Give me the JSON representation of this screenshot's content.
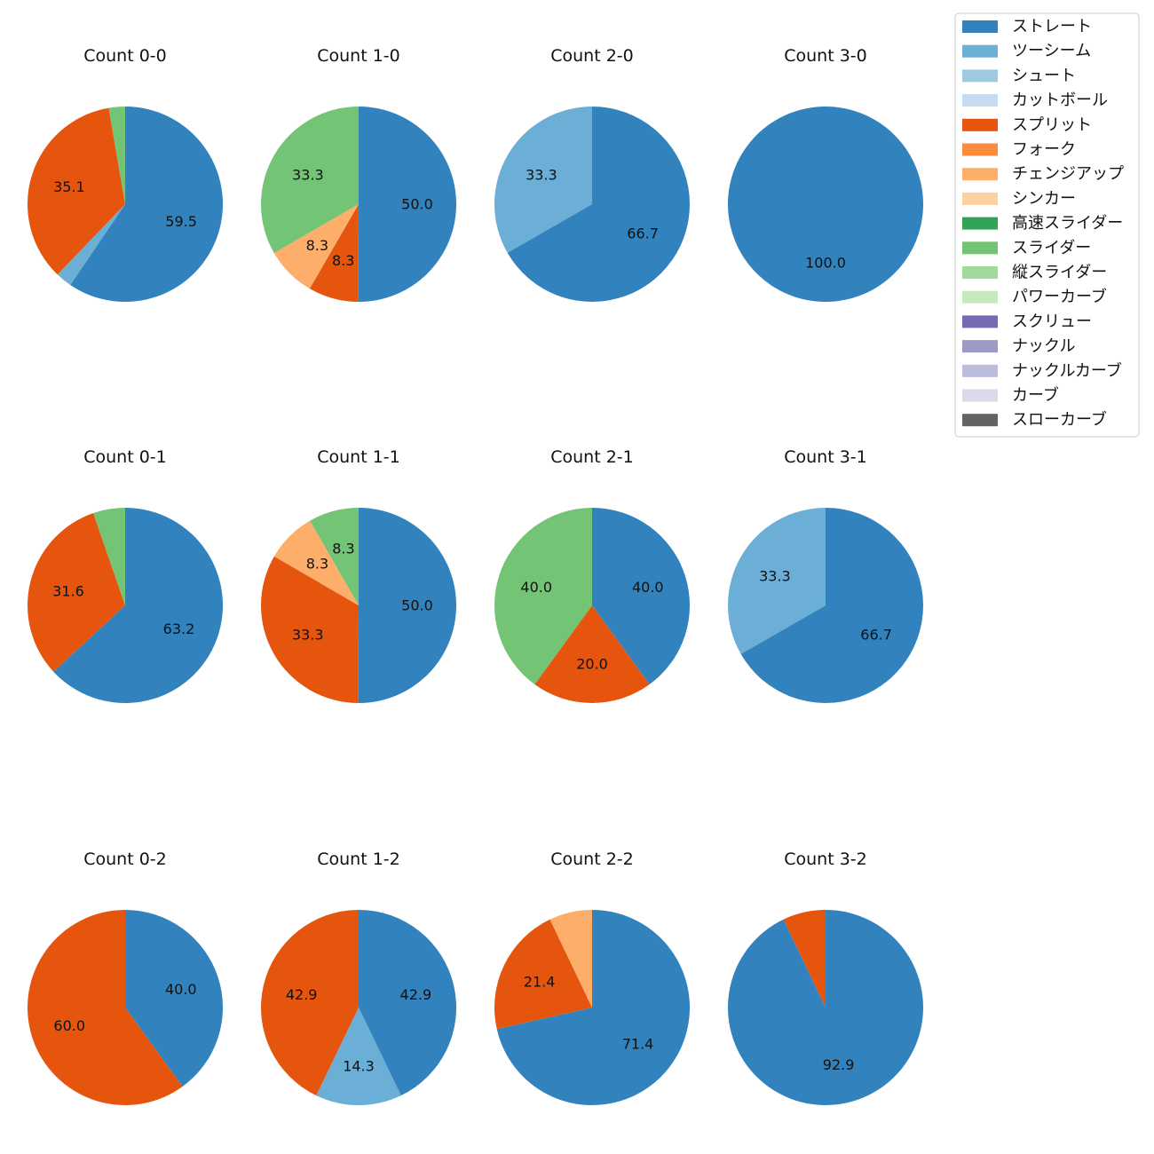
{
  "legend": [
    {
      "name": "ストレート",
      "color": "#3182bd"
    },
    {
      "name": "ツーシーム",
      "color": "#6baed6"
    },
    {
      "name": "シュート",
      "color": "#9ecae1"
    },
    {
      "name": "カットボール",
      "color": "#c6dbef"
    },
    {
      "name": "スプリット",
      "color": "#e6550d"
    },
    {
      "name": "フォーク",
      "color": "#fd8d3c"
    },
    {
      "name": "チェンジアップ",
      "color": "#fdae6b"
    },
    {
      "name": "シンカー",
      "color": "#fdd0a2"
    },
    {
      "name": "高速スライダー",
      "color": "#31a354"
    },
    {
      "name": "スライダー",
      "color": "#74c476"
    },
    {
      "name": "縦スライダー",
      "color": "#a1d99b"
    },
    {
      "name": "パワーカーブ",
      "color": "#c7e9c0"
    },
    {
      "name": "スクリュー",
      "color": "#756bb1"
    },
    {
      "name": "ナックル",
      "color": "#9e9ac8"
    },
    {
      "name": "ナックルカーブ",
      "color": "#bcbddc"
    },
    {
      "name": "カーブ",
      "color": "#dadaeb"
    },
    {
      "name": "スローカーブ",
      "color": "#636363"
    }
  ],
  "chart_data": [
    {
      "type": "pie",
      "title": "Count 0-0",
      "slices": [
        {
          "pitch": "ストレート",
          "value": 59.5,
          "label": "59.5"
        },
        {
          "pitch": "ツーシーム",
          "value": 2.7,
          "label": ""
        },
        {
          "pitch": "スプリット",
          "value": 35.1,
          "label": "35.1"
        },
        {
          "pitch": "スライダー",
          "value": 2.7,
          "label": ""
        }
      ]
    },
    {
      "type": "pie",
      "title": "Count 1-0",
      "slices": [
        {
          "pitch": "ストレート",
          "value": 50.0,
          "label": "50.0"
        },
        {
          "pitch": "スプリット",
          "value": 8.3,
          "label": "8.3"
        },
        {
          "pitch": "チェンジアップ",
          "value": 8.3,
          "label": "8.3"
        },
        {
          "pitch": "スライダー",
          "value": 33.3,
          "label": "33.3"
        }
      ]
    },
    {
      "type": "pie",
      "title": "Count 2-0",
      "slices": [
        {
          "pitch": "ストレート",
          "value": 66.7,
          "label": "66.7"
        },
        {
          "pitch": "ツーシーム",
          "value": 33.3,
          "label": "33.3"
        }
      ]
    },
    {
      "type": "pie",
      "title": "Count 3-0",
      "slices": [
        {
          "pitch": "ストレート",
          "value": 100.0,
          "label": "100.0"
        }
      ]
    },
    {
      "type": "pie",
      "title": "Count 0-1",
      "slices": [
        {
          "pitch": "ストレート",
          "value": 63.2,
          "label": "63.2"
        },
        {
          "pitch": "スプリット",
          "value": 31.6,
          "label": "31.6"
        },
        {
          "pitch": "スライダー",
          "value": 5.3,
          "label": ""
        }
      ]
    },
    {
      "type": "pie",
      "title": "Count 1-1",
      "slices": [
        {
          "pitch": "ストレート",
          "value": 50.0,
          "label": "50.0"
        },
        {
          "pitch": "スプリット",
          "value": 33.3,
          "label": "33.3"
        },
        {
          "pitch": "チェンジアップ",
          "value": 8.3,
          "label": "8.3"
        },
        {
          "pitch": "スライダー",
          "value": 8.3,
          "label": "8.3"
        }
      ]
    },
    {
      "type": "pie",
      "title": "Count 2-1",
      "slices": [
        {
          "pitch": "ストレート",
          "value": 40.0,
          "label": "40.0"
        },
        {
          "pitch": "スプリット",
          "value": 20.0,
          "label": "20.0"
        },
        {
          "pitch": "スライダー",
          "value": 40.0,
          "label": "40.0"
        }
      ]
    },
    {
      "type": "pie",
      "title": "Count 3-1",
      "slices": [
        {
          "pitch": "ストレート",
          "value": 66.7,
          "label": "66.7"
        },
        {
          "pitch": "ツーシーム",
          "value": 33.3,
          "label": "33.3"
        }
      ]
    },
    {
      "type": "pie",
      "title": "Count 0-2",
      "slices": [
        {
          "pitch": "ストレート",
          "value": 40.0,
          "label": "40.0"
        },
        {
          "pitch": "スプリット",
          "value": 60.0,
          "label": "60.0"
        }
      ]
    },
    {
      "type": "pie",
      "title": "Count 1-2",
      "slices": [
        {
          "pitch": "ストレート",
          "value": 42.9,
          "label": "42.9"
        },
        {
          "pitch": "ツーシーム",
          "value": 14.3,
          "label": "14.3"
        },
        {
          "pitch": "スプリット",
          "value": 42.9,
          "label": "42.9"
        }
      ]
    },
    {
      "type": "pie",
      "title": "Count 2-2",
      "slices": [
        {
          "pitch": "ストレート",
          "value": 71.4,
          "label": "71.4"
        },
        {
          "pitch": "スプリット",
          "value": 21.4,
          "label": "21.4"
        },
        {
          "pitch": "チェンジアップ",
          "value": 7.1,
          "label": ""
        }
      ]
    },
    {
      "type": "pie",
      "title": "Count 3-2",
      "slices": [
        {
          "pitch": "ストレート",
          "value": 92.9,
          "label": "92.9"
        },
        {
          "pitch": "スプリット",
          "value": 7.1,
          "label": ""
        }
      ]
    }
  ]
}
